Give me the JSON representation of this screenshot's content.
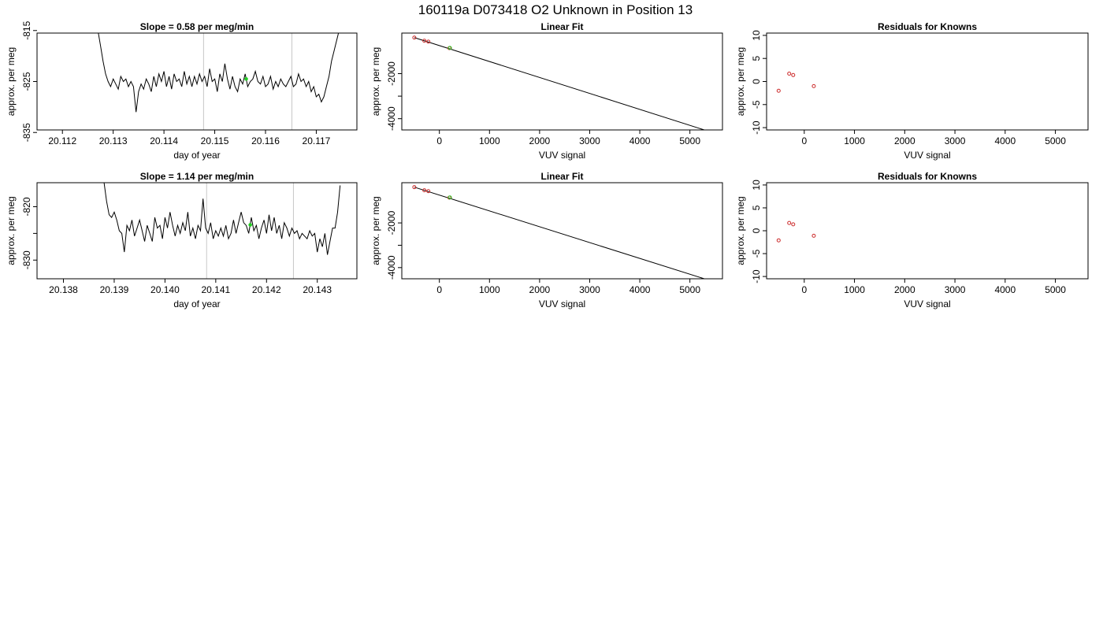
{
  "figure": {
    "title": "160119a     D073418   O2 Unknown in Position  13"
  },
  "colors": {
    "trace": "#000000",
    "frame": "#000000",
    "vline": "#c8c8c8",
    "known_point": "#cc2a2a",
    "unknown_point": "#22cc22"
  },
  "chart_data": [
    {
      "type": "line",
      "panel": "row1-timeseries",
      "title": "Slope =  0.58  per meg/min",
      "xlabel": "day of year",
      "ylabel": "approx. per meg",
      "xlim": [
        20.1115,
        20.1178
      ],
      "ylim": [
        -834.5,
        -815.5
      ],
      "xticks": [
        20.112,
        20.113,
        20.114,
        20.115,
        20.116,
        20.117
      ],
      "xtick_labels": [
        "20.112",
        "20.113",
        "20.114",
        "20.115",
        "20.116",
        "20.117"
      ],
      "yticks": [
        -815,
        -825,
        -835
      ],
      "ytick_labels": [
        "-815",
        "-825",
        "-835"
      ],
      "vlines": [
        20.11478,
        20.11652
      ],
      "series": [
        {
          "x": [
            20.1127,
            20.11275,
            20.1128,
            20.11285,
            20.1129,
            20.11295,
            20.113,
            20.11305,
            20.1131,
            20.11315,
            20.1132,
            20.11325,
            20.1133,
            20.11335,
            20.1134,
            20.11345,
            20.1135,
            20.11355,
            20.1136,
            20.11365,
            20.1137,
            20.11375,
            20.1138,
            20.11385,
            20.1139,
            20.11395,
            20.114,
            20.11405,
            20.1141,
            20.11415,
            20.1142,
            20.11425,
            20.1143,
            20.11435,
            20.1144,
            20.11445,
            20.1145,
            20.11455,
            20.1146,
            20.11465,
            20.1147,
            20.11475,
            20.1148,
            20.11485,
            20.1149,
            20.11495,
            20.115,
            20.11505,
            20.1151,
            20.11515,
            20.1152,
            20.11525,
            20.1153,
            20.11535,
            20.1154,
            20.11545,
            20.1155,
            20.11555,
            20.1156,
            20.11565,
            20.1157,
            20.11575,
            20.1158,
            20.11585,
            20.1159,
            20.11595,
            20.116,
            20.11605,
            20.1161,
            20.11615,
            20.1162,
            20.11625,
            20.1163,
            20.11635,
            20.1164,
            20.11645,
            20.1165,
            20.11655,
            20.1166,
            20.11665,
            20.1167,
            20.11675,
            20.1168,
            20.11685,
            20.1169,
            20.11695,
            20.117,
            20.11705,
            20.1171,
            20.11715,
            20.1172,
            20.11725,
            20.1173,
            20.11735,
            20.1174,
            20.11745
          ],
          "y": [
            -815,
            -818,
            -821,
            -823.5,
            -825,
            -826,
            -824.5,
            -825.5,
            -826.5,
            -824,
            -825,
            -824.5,
            -826,
            -825,
            -826,
            -831,
            -827,
            -825.5,
            -826.5,
            -824.5,
            -825.5,
            -827,
            -824,
            -826,
            -823.5,
            -825,
            -823,
            -826,
            -824,
            -826.5,
            -823.5,
            -825,
            -824.5,
            -826,
            -823,
            -825.5,
            -824,
            -826,
            -824,
            -825.5,
            -823.5,
            -825,
            -824,
            -826,
            -822.5,
            -825,
            -824.5,
            -827,
            -823.5,
            -825,
            -821.5,
            -824.5,
            -826.5,
            -824,
            -826,
            -827,
            -824.5,
            -825.5,
            -823.5,
            -826,
            -825,
            -824.5,
            -823,
            -825,
            -825.5,
            -824,
            -826,
            -825.5,
            -824,
            -826.5,
            -825,
            -826,
            -824.5,
            -825.5,
            -826,
            -825,
            -824,
            -826,
            -825.5,
            -823.5,
            -825,
            -824.5,
            -826,
            -825,
            -827,
            -826,
            -828,
            -827.5,
            -829,
            -828,
            -826,
            -824,
            -821,
            -819,
            -817,
            -815
          ]
        }
      ],
      "highlight_points": [
        {
          "x": 20.11562,
          "y": -824.5
        }
      ]
    },
    {
      "type": "line",
      "panel": "row1-linearfit",
      "title": "Linear Fit",
      "xlabel": "VUV signal",
      "ylabel": "approx. per meg",
      "xlim": [
        -750,
        5650
      ],
      "ylim": [
        -4500,
        -200
      ],
      "xticks": [
        0,
        1000,
        2000,
        3000,
        4000,
        5000
      ],
      "xtick_labels": [
        "0",
        "1000",
        "2000",
        "3000",
        "4000",
        "5000"
      ],
      "yticks": [
        -2000,
        -3000,
        -4000
      ],
      "ytick_labels": [
        "-2000",
        "",
        "-4000"
      ],
      "fit_line": {
        "x": [
          -500,
          5400
        ],
        "y": [
          -400,
          -4580
        ]
      },
      "known_points": {
        "x": [
          -500,
          -300,
          -220,
          200
        ],
        "y": [
          -400,
          -540,
          -580,
          -870
        ]
      },
      "unknown_points": {
        "x": [
          210
        ],
        "y": [
          -860
        ]
      }
    },
    {
      "type": "scatter",
      "panel": "row1-residuals",
      "title": "Residuals for Knowns",
      "xlabel": "VUV signal",
      "ylabel": "approx. per meg",
      "xlim": [
        -750,
        5650
      ],
      "ylim": [
        -10.5,
        10.5
      ],
      "xticks": [
        0,
        1000,
        2000,
        3000,
        4000,
        5000
      ],
      "xtick_labels": [
        "0",
        "1000",
        "2000",
        "3000",
        "4000",
        "5000"
      ],
      "yticks": [
        10,
        5,
        0,
        -5,
        -10
      ],
      "ytick_labels": [
        "10",
        "5",
        "0",
        "-5",
        "-10"
      ],
      "points": {
        "x": [
          -510,
          -300,
          -220,
          190
        ],
        "y": [
          -2.0,
          1.7,
          1.4,
          -1.0
        ]
      }
    },
    {
      "type": "line",
      "panel": "row2-timeseries",
      "title": "Slope =  1.14  per meg/min",
      "xlabel": "day of year",
      "ylabel": "approx. per meg",
      "xlim": [
        20.13748,
        20.14378
      ],
      "ylim": [
        -833.5,
        -815.5
      ],
      "xticks": [
        20.138,
        20.139,
        20.14,
        20.141,
        20.142,
        20.143
      ],
      "xtick_labels": [
        "20.138",
        "20.139",
        "20.140",
        "20.141",
        "20.142",
        "20.143"
      ],
      "yticks": [
        -820,
        -825,
        -830
      ],
      "ytick_labels": [
        "-820",
        "",
        "-830"
      ],
      "vlines": [
        20.14082,
        20.14253
      ],
      "series": [
        {
          "x": [
            20.1388,
            20.13885,
            20.1389,
            20.13895,
            20.139,
            20.13905,
            20.1391,
            20.13915,
            20.1392,
            20.13925,
            20.1393,
            20.13935,
            20.1394,
            20.13945,
            20.1395,
            20.13955,
            20.1396,
            20.13965,
            20.1397,
            20.13975,
            20.1398,
            20.13985,
            20.1399,
            20.13995,
            20.14,
            20.14005,
            20.1401,
            20.14015,
            20.1402,
            20.14025,
            20.1403,
            20.14035,
            20.1404,
            20.14045,
            20.1405,
            20.14055,
            20.1406,
            20.14065,
            20.1407,
            20.14075,
            20.1408,
            20.14085,
            20.1409,
            20.14095,
            20.141,
            20.14105,
            20.1411,
            20.14115,
            20.1412,
            20.14125,
            20.1413,
            20.14135,
            20.1414,
            20.14145,
            20.1415,
            20.14155,
            20.1416,
            20.14165,
            20.1417,
            20.14175,
            20.1418,
            20.14185,
            20.1419,
            20.14195,
            20.142,
            20.14205,
            20.1421,
            20.14215,
            20.1422,
            20.14225,
            20.1423,
            20.14235,
            20.1424,
            20.14245,
            20.1425,
            20.14255,
            20.1426,
            20.14265,
            20.1427,
            20.14275,
            20.1428,
            20.14285,
            20.1429,
            20.14295,
            20.143,
            20.14305,
            20.1431,
            20.14315,
            20.1432,
            20.14325,
            20.1433,
            20.14335,
            20.1434,
            20.14345
          ],
          "y": [
            -815.5,
            -819,
            -821.5,
            -822,
            -821,
            -822.5,
            -824.5,
            -825,
            -828.5,
            -823.5,
            -824.5,
            -822.5,
            -825.5,
            -824,
            -822.5,
            -824.5,
            -826.5,
            -823.5,
            -825,
            -826.5,
            -822,
            -824,
            -823.5,
            -826,
            -822,
            -824,
            -821,
            -823.5,
            -825.5,
            -823.5,
            -825,
            -823,
            -824.5,
            -821,
            -825.5,
            -824,
            -826,
            -823.5,
            -824.5,
            -818.5,
            -824,
            -825,
            -823,
            -826,
            -824.5,
            -825.5,
            -824,
            -825.5,
            -823.5,
            -826,
            -825,
            -822.5,
            -825,
            -823,
            -821,
            -823,
            -823.5,
            -825,
            -822,
            -824.5,
            -823.5,
            -826,
            -824,
            -822.5,
            -825,
            -821.5,
            -824.5,
            -822,
            -825,
            -823.5,
            -826,
            -823,
            -824,
            -825.5,
            -824,
            -825,
            -824.5,
            -826,
            -825,
            -825.5,
            -826,
            -824.5,
            -825.5,
            -825,
            -828.5,
            -826,
            -827.5,
            -825,
            -829,
            -826.5,
            -824,
            -824,
            -821,
            -816
          ]
        }
      ],
      "highlight_points": [
        {
          "x": 20.14168,
          "y": -823.4
        }
      ]
    },
    {
      "type": "line",
      "panel": "row2-linearfit",
      "title": "Linear Fit",
      "xlabel": "VUV signal",
      "ylabel": "approx. per meg",
      "xlim": [
        -750,
        5650
      ],
      "ylim": [
        -4500,
        -200
      ],
      "xticks": [
        0,
        1000,
        2000,
        3000,
        4000,
        5000
      ],
      "xtick_labels": [
        "0",
        "1000",
        "2000",
        "3000",
        "4000",
        "5000"
      ],
      "yticks": [
        -2000,
        -3000,
        -4000
      ],
      "ytick_labels": [
        "-2000",
        "",
        "-4000"
      ],
      "fit_line": {
        "x": [
          -500,
          5400
        ],
        "y": [
          -400,
          -4580
        ]
      },
      "known_points": {
        "x": [
          -500,
          -300,
          -220,
          200
        ],
        "y": [
          -400,
          -540,
          -580,
          -870
        ]
      },
      "unknown_points": {
        "x": [
          210
        ],
        "y": [
          -860
        ]
      }
    },
    {
      "type": "scatter",
      "panel": "row2-residuals",
      "title": "Residuals for Knowns",
      "xlabel": "VUV signal",
      "ylabel": "approx. per meg",
      "xlim": [
        -750,
        5650
      ],
      "ylim": [
        -10.5,
        10.5
      ],
      "xticks": [
        0,
        1000,
        2000,
        3000,
        4000,
        5000
      ],
      "xtick_labels": [
        "0",
        "1000",
        "2000",
        "3000",
        "4000",
        "5000"
      ],
      "yticks": [
        10,
        5,
        0,
        -5,
        -10
      ],
      "ytick_labels": [
        "10",
        "5",
        "0",
        "-5",
        "-10"
      ],
      "points": {
        "x": [
          -510,
          -300,
          -220,
          190
        ],
        "y": [
          -2.1,
          1.7,
          1.4,
          -1.1
        ]
      }
    }
  ]
}
